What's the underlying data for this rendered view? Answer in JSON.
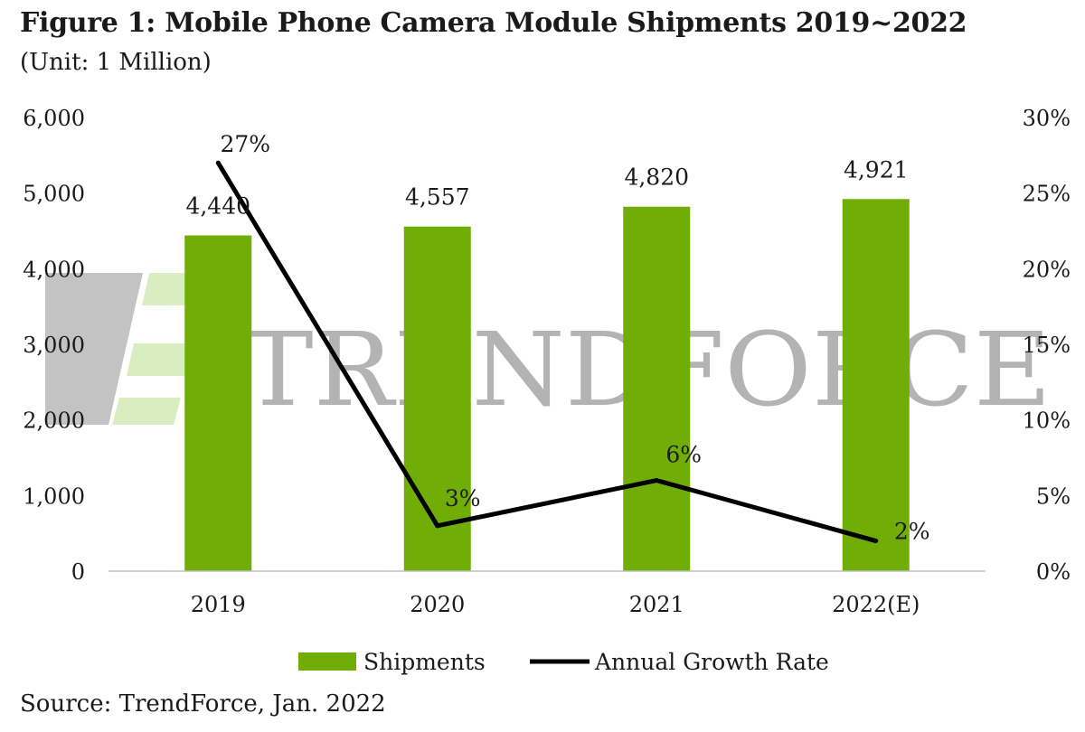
{
  "figure": {
    "title": "Figure 1: Mobile Phone Camera Module Shipments 2019~2022",
    "subtitle": "(Unit: 1 Million)",
    "source": "Source: TrendForce, Jan. 2022",
    "watermark_text": "TRENDFORCE"
  },
  "chart_data": {
    "type": "bar",
    "categories": [
      "2019",
      "2020",
      "2021",
      "2022(E)"
    ],
    "series": [
      {
        "name": "Shipments",
        "type": "bar",
        "axis": "left",
        "values": [
          4440,
          4557,
          4820,
          4921
        ],
        "labels": [
          "4,440",
          "4,557",
          "4,820",
          "4,921"
        ]
      },
      {
        "name": "Annual Growth Rate",
        "type": "line",
        "axis": "right",
        "values": [
          27,
          3,
          6,
          2
        ],
        "labels": [
          "27%",
          "3%",
          "6%",
          "2%"
        ]
      }
    ],
    "ylim_left": [
      0,
      6000
    ],
    "yticks_left": [
      "0",
      "1,000",
      "2,000",
      "3,000",
      "4,000",
      "5,000",
      "6,000"
    ],
    "ylim_right": [
      0,
      30
    ],
    "yticks_right": [
      "0%",
      "5%",
      "10%",
      "15%",
      "20%",
      "25%",
      "30%"
    ],
    "legend_position": "bottom",
    "grid": false,
    "colors": {
      "bar": "#70ad07",
      "line": "#000000",
      "text": "#1a1a1a",
      "axis": "#bfbfbf"
    }
  }
}
